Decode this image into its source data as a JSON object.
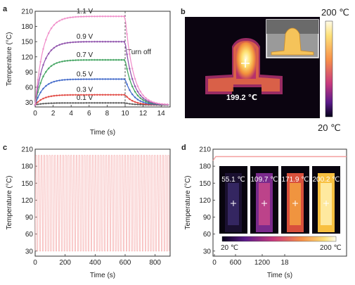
{
  "figure": {
    "panels": [
      {
        "letter": "a"
      },
      {
        "letter": "b",
        "colorbar_max": "200 ℃",
        "colorbar_min": "20 ℃",
        "hotspot_label": "199.2 ℃"
      },
      {
        "letter": "c"
      },
      {
        "letter": "d",
        "inset_labels": [
          "55.1 ℃",
          "109.7 ℃",
          "171.9 ℃",
          "200.2 ℃"
        ],
        "inset_colorbar_min": "20 ℃",
        "inset_colorbar_max": "200 ℃",
        "inset_temperatures": [
          55.1,
          109.7,
          171.9,
          200.2
        ]
      }
    ],
    "colors": {
      "series_0_1V": "#555555",
      "series_0_3V": "#e0403a",
      "series_0_5V": "#3a64c8",
      "series_0_7V": "#3aa05a",
      "series_0_9V": "#8a4aa8",
      "series_1_1V": "#f08ac8",
      "cycle_line": "#f4a0a0"
    }
  },
  "chart_data": [
    {
      "panel": "a",
      "type": "line",
      "xlabel": "Time (s)",
      "ylabel": "Temperature (°C)",
      "xlim": [
        0,
        15
      ],
      "ylim": [
        21,
        210
      ],
      "xticks": [
        "0",
        "2",
        "4",
        "6",
        "8",
        "10",
        "12",
        "14"
      ],
      "yticks": [
        "30",
        "60",
        "90",
        "120",
        "150",
        "180",
        "210"
      ],
      "annotation": "Turn off",
      "turn_off_time": 10,
      "series": [
        {
          "name": "0.1 V",
          "baseline": 25,
          "plateau": 29
        },
        {
          "name": "0.3 V",
          "baseline": 25,
          "plateau": 45
        },
        {
          "name": "0.5 V",
          "baseline": 25,
          "plateau": 76
        },
        {
          "name": "0.7 V",
          "baseline": 25,
          "plateau": 114
        },
        {
          "name": "0.9 V",
          "baseline": 25,
          "plateau": 150
        },
        {
          "name": "1.1 V",
          "baseline": 25,
          "plateau": 200
        }
      ]
    },
    {
      "panel": "c",
      "type": "line",
      "xlabel": "Time (s)",
      "ylabel": "Temperature (°C)",
      "xlim": [
        0,
        900
      ],
      "ylim": [
        21,
        210
      ],
      "xticks": [
        "0",
        "200",
        "400",
        "600",
        "800"
      ],
      "yticks": [
        "30",
        "60",
        "90",
        "120",
        "150",
        "180",
        "210"
      ],
      "cycle_min": 30,
      "cycle_max": 199,
      "cycles": 50
    },
    {
      "panel": "d",
      "type": "line",
      "xlabel": "Time (s)",
      "ylabel": "Temperature (°C)",
      "ylim": [
        21,
        210
      ],
      "xticks": [
        "0",
        "600",
        "1200",
        "18"
      ],
      "yticks": [
        "30",
        "60",
        "90",
        "120",
        "150",
        "180",
        "210"
      ],
      "plateau": 197,
      "rise_to": 190
    }
  ]
}
